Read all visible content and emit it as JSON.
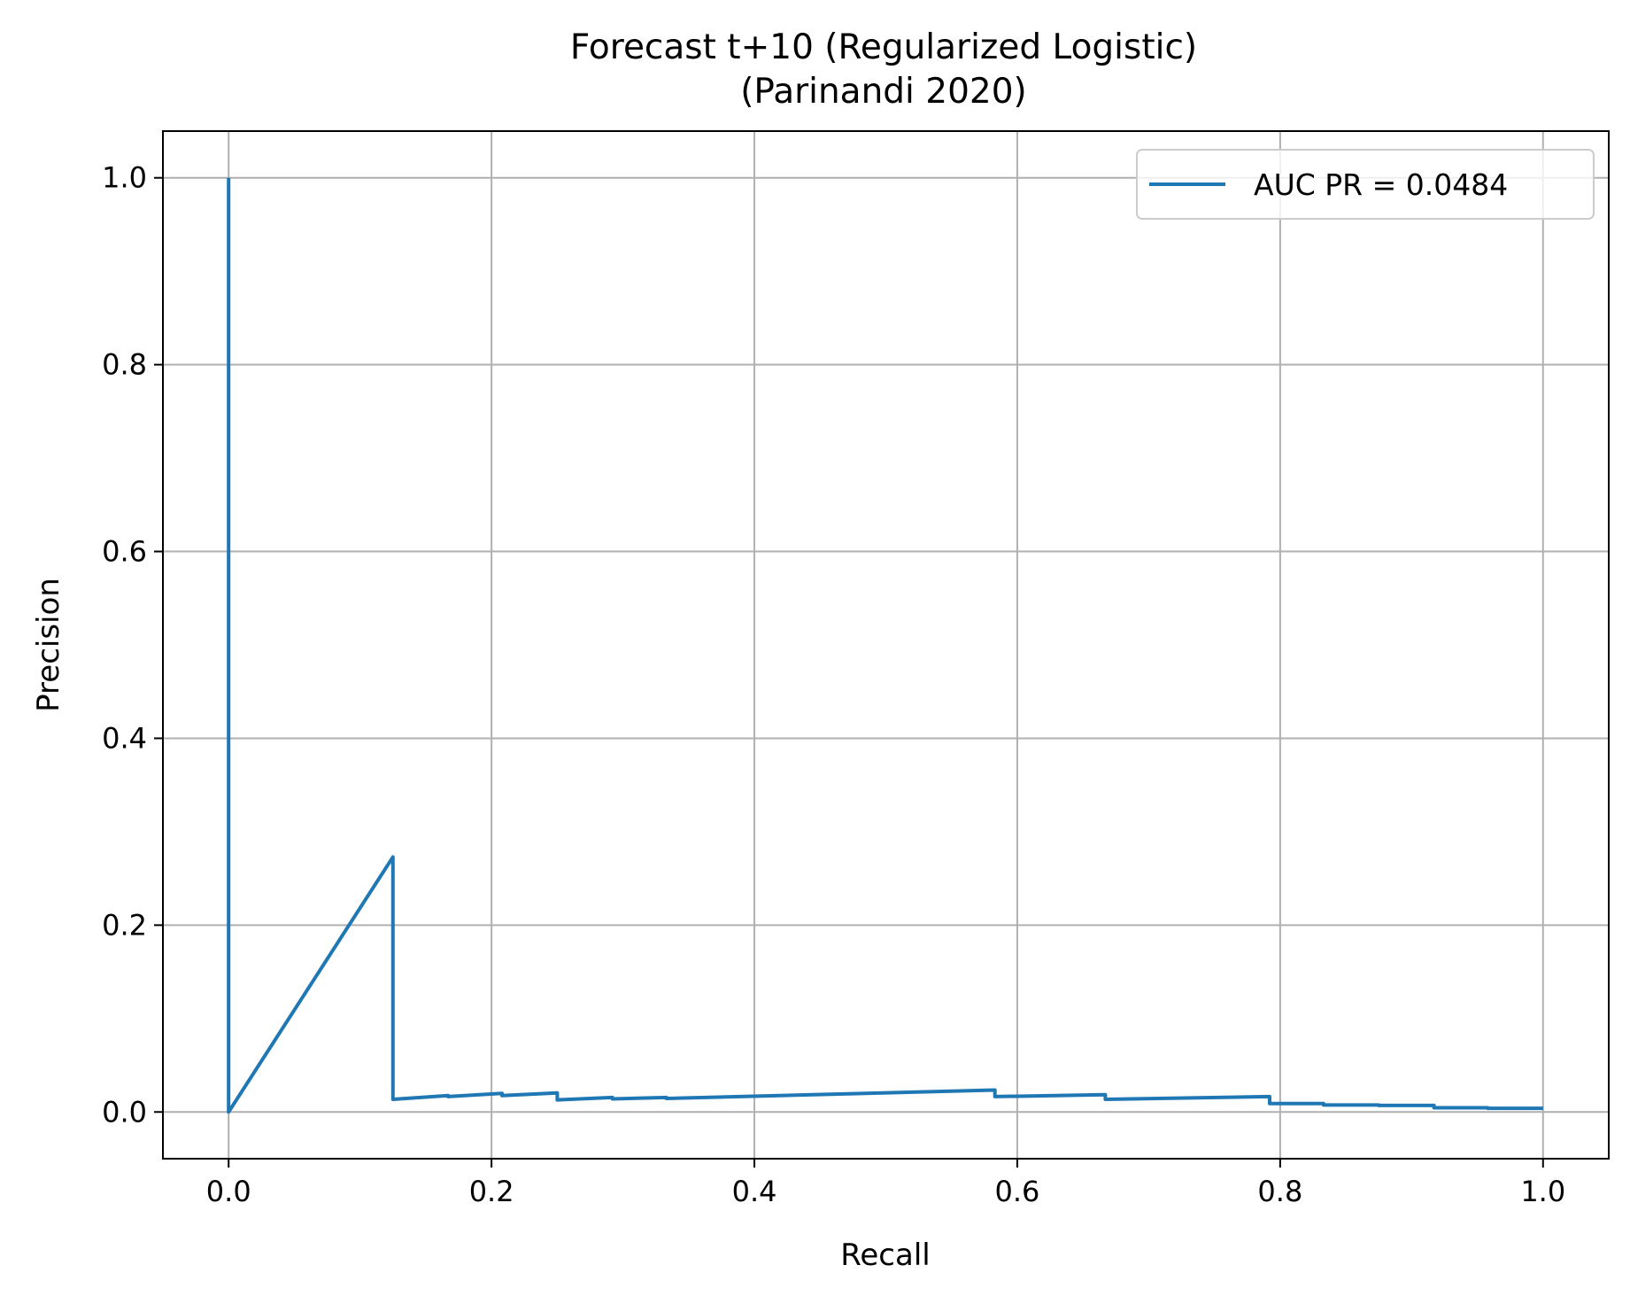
{
  "chart_data": {
    "type": "line",
    "title": "Forecast t+10 (Regularized Logistic)",
    "subtitle": "(Parinandi 2020)",
    "xlabel": "Recall",
    "ylabel": "Precision",
    "xlim": [
      -0.05,
      1.05
    ],
    "ylim": [
      -0.05,
      1.05
    ],
    "xticks": [
      0.0,
      0.2,
      0.4,
      0.6,
      0.8,
      1.0
    ],
    "xtick_labels": [
      "0.0",
      "0.2",
      "0.4",
      "0.6",
      "0.8",
      "1.0"
    ],
    "yticks": [
      0.0,
      0.2,
      0.4,
      0.6,
      0.8,
      1.0
    ],
    "ytick_labels": [
      "0.0",
      "0.2",
      "0.4",
      "0.6",
      "0.8",
      "1.0"
    ],
    "grid": true,
    "legend_position": "top-right",
    "series": [
      {
        "name": "AUC PR = 0.0484",
        "color": "#1f77b4",
        "points": [
          [
            0.0,
            1.0
          ],
          [
            0.0,
            0.0
          ],
          [
            0.125,
            0.273
          ],
          [
            0.125,
            0.0135
          ],
          [
            0.167,
            0.0175
          ],
          [
            0.167,
            0.0165
          ],
          [
            0.208,
            0.02
          ],
          [
            0.208,
            0.0175
          ],
          [
            0.25,
            0.0205
          ],
          [
            0.25,
            0.013
          ],
          [
            0.292,
            0.0155
          ],
          [
            0.292,
            0.014
          ],
          [
            0.333,
            0.0155
          ],
          [
            0.333,
            0.0145
          ],
          [
            0.583,
            0.0235
          ],
          [
            0.583,
            0.0165
          ],
          [
            0.667,
            0.0185
          ],
          [
            0.667,
            0.0135
          ],
          [
            0.792,
            0.0165
          ],
          [
            0.792,
            0.009
          ],
          [
            0.833,
            0.009
          ],
          [
            0.833,
            0.0075
          ],
          [
            0.875,
            0.0075
          ],
          [
            0.875,
            0.007
          ],
          [
            0.917,
            0.007
          ],
          [
            0.917,
            0.0045
          ],
          [
            0.958,
            0.0045
          ],
          [
            0.958,
            0.004
          ],
          [
            1.0,
            0.004
          ]
        ]
      }
    ]
  }
}
